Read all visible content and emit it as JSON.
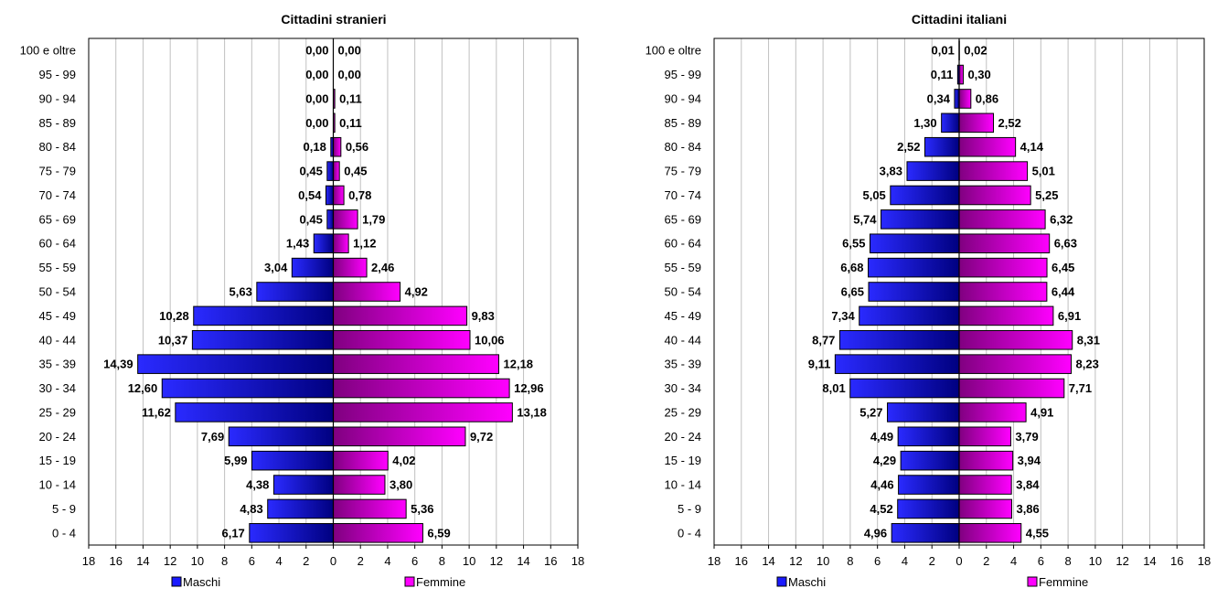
{
  "chart_data": [
    {
      "type": "bar",
      "orientation": "horizontal-pyramid",
      "title": "Cittadini stranieri",
      "categories": [
        "0 - 4",
        "5 - 9",
        "10 - 14",
        "15 - 19",
        "20 - 24",
        "25 - 29",
        "30 - 34",
        "35 - 39",
        "40 - 44",
        "45 - 49",
        "50 - 54",
        "55 - 59",
        "60 - 64",
        "65 - 69",
        "70 - 74",
        "75 - 79",
        "80 - 84",
        "85 - 89",
        "90 - 94",
        "95 - 99",
        "100 e oltre"
      ],
      "series": [
        {
          "name": "Maschi",
          "values": [
            6.17,
            4.83,
            4.38,
            5.99,
            7.69,
            11.62,
            12.6,
            14.39,
            10.37,
            10.28,
            5.63,
            3.04,
            1.43,
            0.45,
            0.54,
            0.45,
            0.18,
            0.0,
            0.0,
            0.0,
            0.0
          ],
          "labels": [
            "6,17",
            "4,83",
            "4,38",
            "5,99",
            "7,69",
            "11,62",
            "12,60",
            "14,39",
            "10,37",
            "10,28",
            "5,63",
            "3,04",
            "1,43",
            "0,45",
            "0,54",
            "0,45",
            "0,18",
            "0,00",
            "0,00",
            "0,00",
            "0,00"
          ]
        },
        {
          "name": "Femmine",
          "values": [
            6.59,
            5.36,
            3.8,
            4.02,
            9.72,
            13.18,
            12.96,
            12.18,
            10.06,
            9.83,
            4.92,
            2.46,
            1.12,
            1.79,
            0.78,
            0.45,
            0.56,
            0.11,
            0.11,
            0.0,
            0.0
          ],
          "labels": [
            "6,59",
            "5,36",
            "3,80",
            "4,02",
            "9,72",
            "13,18",
            "12,96",
            "12,18",
            "10,06",
            "9,83",
            "4,92",
            "2,46",
            "1,12",
            "1,79",
            "0,78",
            "0,45",
            "0,56",
            "0,11",
            "0,11",
            "0,00",
            "0,00"
          ]
        }
      ],
      "xticks": [
        "18",
        "16",
        "14",
        "12",
        "10",
        "8",
        "6",
        "4",
        "2",
        "0",
        "2",
        "4",
        "6",
        "8",
        "10",
        "12",
        "14",
        "16",
        "18"
      ],
      "xlim": [
        -18,
        18
      ],
      "grid": true,
      "legend_position": "bottom",
      "colors": {
        "Maschi": "#1a1aff",
        "Femmine": "#ff00ff"
      }
    },
    {
      "type": "bar",
      "orientation": "horizontal-pyramid",
      "title": "Cittadini italiani",
      "categories": [
        "0 - 4",
        "5 - 9",
        "10 - 14",
        "15 - 19",
        "20 - 24",
        "25 - 29",
        "30 - 34",
        "35 - 39",
        "40 - 44",
        "45 - 49",
        "50 - 54",
        "55 - 59",
        "60 - 64",
        "65 - 69",
        "70 - 74",
        "75 - 79",
        "80 - 84",
        "85 - 89",
        "90 - 94",
        "95 - 99",
        "100 e oltre"
      ],
      "series": [
        {
          "name": "Maschi",
          "values": [
            4.96,
            4.52,
            4.46,
            4.29,
            4.49,
            5.27,
            8.01,
            9.11,
            8.77,
            7.34,
            6.65,
            6.68,
            6.55,
            5.74,
            5.05,
            3.83,
            2.52,
            1.3,
            0.34,
            0.11,
            0.01
          ],
          "labels": [
            "4,96",
            "4,52",
            "4,46",
            "4,29",
            "4,49",
            "5,27",
            "8,01",
            "9,11",
            "8,77",
            "7,34",
            "6,65",
            "6,68",
            "6,55",
            "5,74",
            "5,05",
            "3,83",
            "2,52",
            "1,30",
            "0,34",
            "0,11",
            "0,01"
          ]
        },
        {
          "name": "Femmine",
          "values": [
            4.55,
            3.86,
            3.84,
            3.94,
            3.79,
            4.91,
            7.71,
            8.23,
            8.31,
            6.91,
            6.44,
            6.45,
            6.63,
            6.32,
            5.25,
            5.01,
            4.14,
            2.52,
            0.86,
            0.3,
            0.02
          ],
          "labels": [
            "4,55",
            "3,86",
            "3,84",
            "3,94",
            "3,79",
            "4,91",
            "7,71",
            "8,23",
            "8,31",
            "6,91",
            "6,44",
            "6,45",
            "6,63",
            "6,32",
            "5,25",
            "5,01",
            "4,14",
            "2,52",
            "0,86",
            "0,30",
            "0,02"
          ]
        }
      ],
      "xticks": [
        "18",
        "16",
        "14",
        "12",
        "10",
        "8",
        "6",
        "4",
        "2",
        "0",
        "2",
        "4",
        "6",
        "8",
        "10",
        "12",
        "14",
        "16",
        "18"
      ],
      "xlim": [
        -18,
        18
      ],
      "grid": true,
      "legend_position": "bottom",
      "colors": {
        "Maschi": "#1a1aff",
        "Femmine": "#ff00ff"
      }
    }
  ]
}
